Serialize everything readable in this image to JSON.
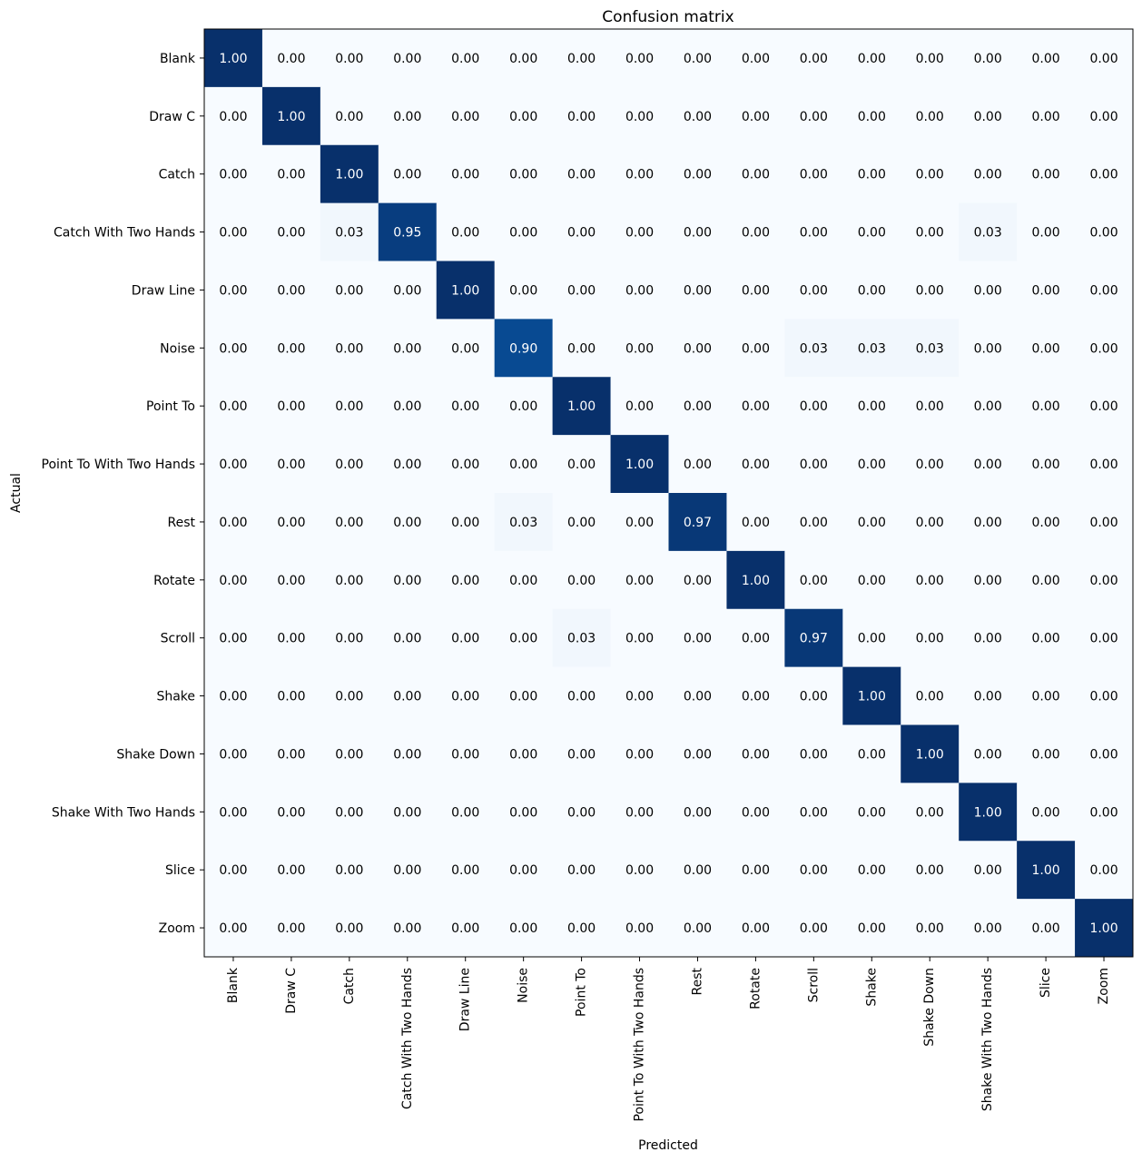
{
  "chart_data": {
    "type": "heatmap",
    "title": "Confusion matrix",
    "xlabel": "Predicted",
    "ylabel": "Actual",
    "categories": [
      "Blank",
      "Draw C",
      "Catch",
      "Catch With Two Hands",
      "Draw Line",
      "Noise",
      "Point To",
      "Point To With Two Hands",
      "Rest",
      "Rotate",
      "Scroll",
      "Shake",
      "Shake Down",
      "Shake With Two Hands",
      "Slice",
      "Zoom"
    ],
    "value_format": "2 decimals",
    "colormap": "Blues",
    "color_low": "#f7fbff",
    "color_high": "#08306b",
    "text_color_dark": "#000000",
    "text_color_light": "#ffffff",
    "values": [
      [
        1.0,
        0.0,
        0.0,
        0.0,
        0.0,
        0.0,
        0.0,
        0.0,
        0.0,
        0.0,
        0.0,
        0.0,
        0.0,
        0.0,
        0.0,
        0.0
      ],
      [
        0.0,
        1.0,
        0.0,
        0.0,
        0.0,
        0.0,
        0.0,
        0.0,
        0.0,
        0.0,
        0.0,
        0.0,
        0.0,
        0.0,
        0.0,
        0.0
      ],
      [
        0.0,
        0.0,
        1.0,
        0.0,
        0.0,
        0.0,
        0.0,
        0.0,
        0.0,
        0.0,
        0.0,
        0.0,
        0.0,
        0.0,
        0.0,
        0.0
      ],
      [
        0.0,
        0.0,
        0.03,
        0.95,
        0.0,
        0.0,
        0.0,
        0.0,
        0.0,
        0.0,
        0.0,
        0.0,
        0.0,
        0.03,
        0.0,
        0.0
      ],
      [
        0.0,
        0.0,
        0.0,
        0.0,
        1.0,
        0.0,
        0.0,
        0.0,
        0.0,
        0.0,
        0.0,
        0.0,
        0.0,
        0.0,
        0.0,
        0.0
      ],
      [
        0.0,
        0.0,
        0.0,
        0.0,
        0.0,
        0.9,
        0.0,
        0.0,
        0.0,
        0.0,
        0.03,
        0.03,
        0.03,
        0.0,
        0.0,
        0.0
      ],
      [
        0.0,
        0.0,
        0.0,
        0.0,
        0.0,
        0.0,
        1.0,
        0.0,
        0.0,
        0.0,
        0.0,
        0.0,
        0.0,
        0.0,
        0.0,
        0.0
      ],
      [
        0.0,
        0.0,
        0.0,
        0.0,
        0.0,
        0.0,
        0.0,
        1.0,
        0.0,
        0.0,
        0.0,
        0.0,
        0.0,
        0.0,
        0.0,
        0.0
      ],
      [
        0.0,
        0.0,
        0.0,
        0.0,
        0.0,
        0.03,
        0.0,
        0.0,
        0.97,
        0.0,
        0.0,
        0.0,
        0.0,
        0.0,
        0.0,
        0.0
      ],
      [
        0.0,
        0.0,
        0.0,
        0.0,
        0.0,
        0.0,
        0.0,
        0.0,
        0.0,
        1.0,
        0.0,
        0.0,
        0.0,
        0.0,
        0.0,
        0.0
      ],
      [
        0.0,
        0.0,
        0.0,
        0.0,
        0.0,
        0.0,
        0.03,
        0.0,
        0.0,
        0.0,
        0.97,
        0.0,
        0.0,
        0.0,
        0.0,
        0.0
      ],
      [
        0.0,
        0.0,
        0.0,
        0.0,
        0.0,
        0.0,
        0.0,
        0.0,
        0.0,
        0.0,
        0.0,
        1.0,
        0.0,
        0.0,
        0.0,
        0.0
      ],
      [
        0.0,
        0.0,
        0.0,
        0.0,
        0.0,
        0.0,
        0.0,
        0.0,
        0.0,
        0.0,
        0.0,
        0.0,
        1.0,
        0.0,
        0.0,
        0.0
      ],
      [
        0.0,
        0.0,
        0.0,
        0.0,
        0.0,
        0.0,
        0.0,
        0.0,
        0.0,
        0.0,
        0.0,
        0.0,
        0.0,
        1.0,
        0.0,
        0.0
      ],
      [
        0.0,
        0.0,
        0.0,
        0.0,
        0.0,
        0.0,
        0.0,
        0.0,
        0.0,
        0.0,
        0.0,
        0.0,
        0.0,
        0.0,
        1.0,
        0.0
      ],
      [
        0.0,
        0.0,
        0.0,
        0.0,
        0.0,
        0.0,
        0.0,
        0.0,
        0.0,
        0.0,
        0.0,
        0.0,
        0.0,
        0.0,
        0.0,
        1.0
      ]
    ]
  }
}
